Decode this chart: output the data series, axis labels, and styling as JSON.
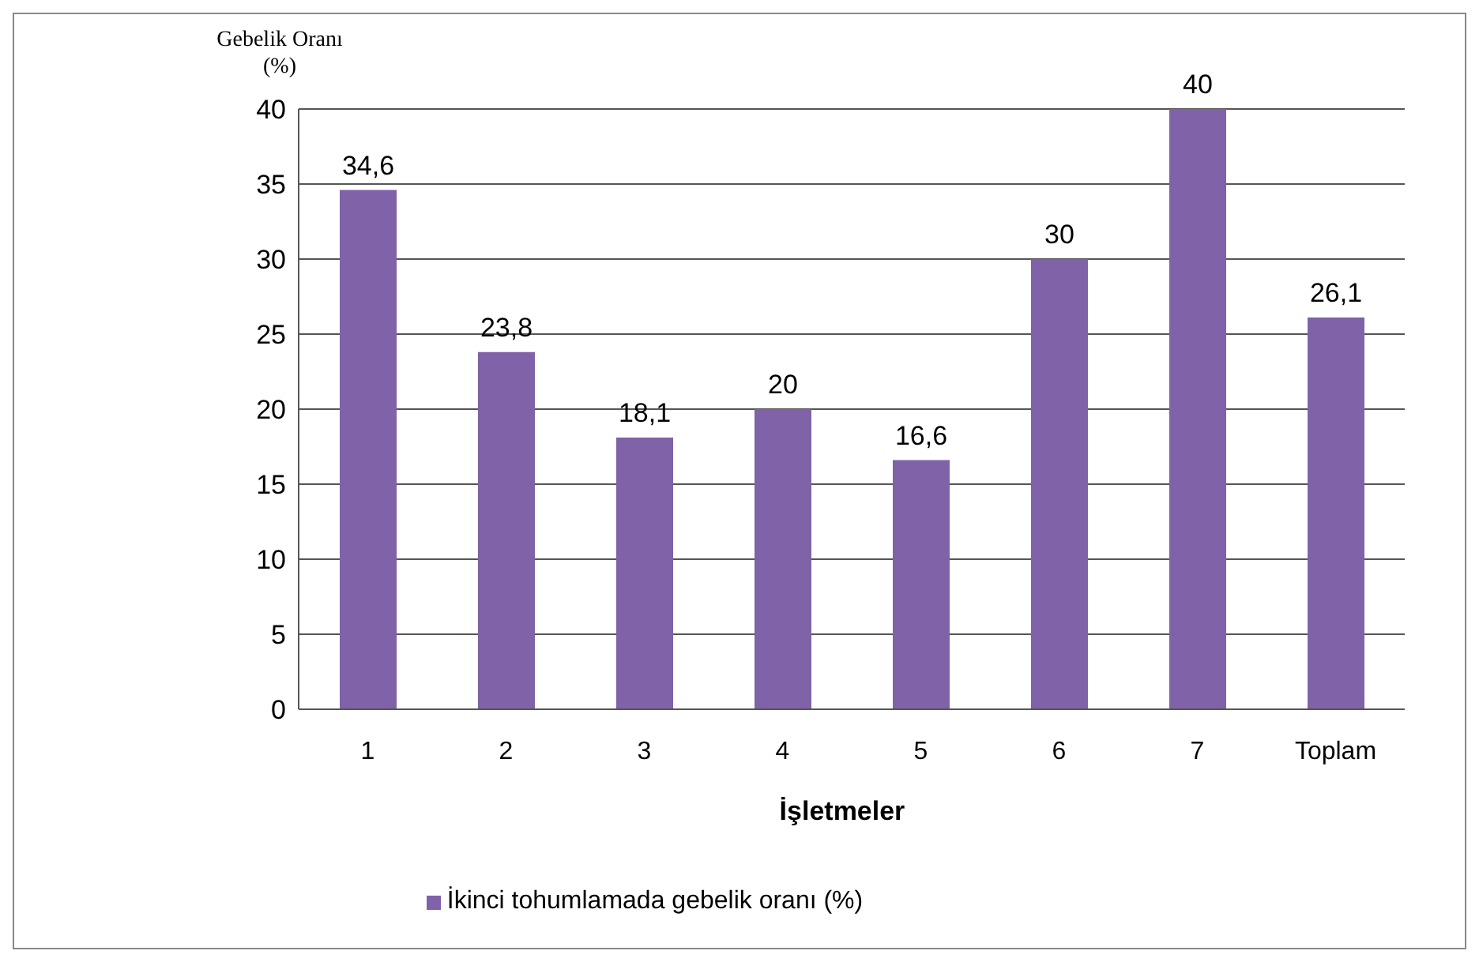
{
  "chart_data": {
    "type": "bar",
    "ylabel": "Gebelik Oranı (%)",
    "xlabel": "İşletmeler",
    "categories": [
      "1",
      "2",
      "3",
      "4",
      "5",
      "6",
      "7",
      "Toplam"
    ],
    "series": [
      {
        "name": "İkinci tohumlamada gebelik oranı (%)",
        "color": "#7f62a8",
        "values": [
          34.6,
          23.8,
          18.1,
          20,
          16.6,
          30,
          40,
          26.1
        ],
        "value_labels": [
          "34,6",
          "23,8",
          "18,1",
          "20",
          "16,6",
          "30",
          "40",
          "26,1"
        ]
      }
    ],
    "ylim": [
      0,
      40
    ],
    "yticks": [
      0,
      5,
      10,
      15,
      20,
      25,
      30,
      35,
      40
    ],
    "grid": "y",
    "legend": "bottom"
  }
}
